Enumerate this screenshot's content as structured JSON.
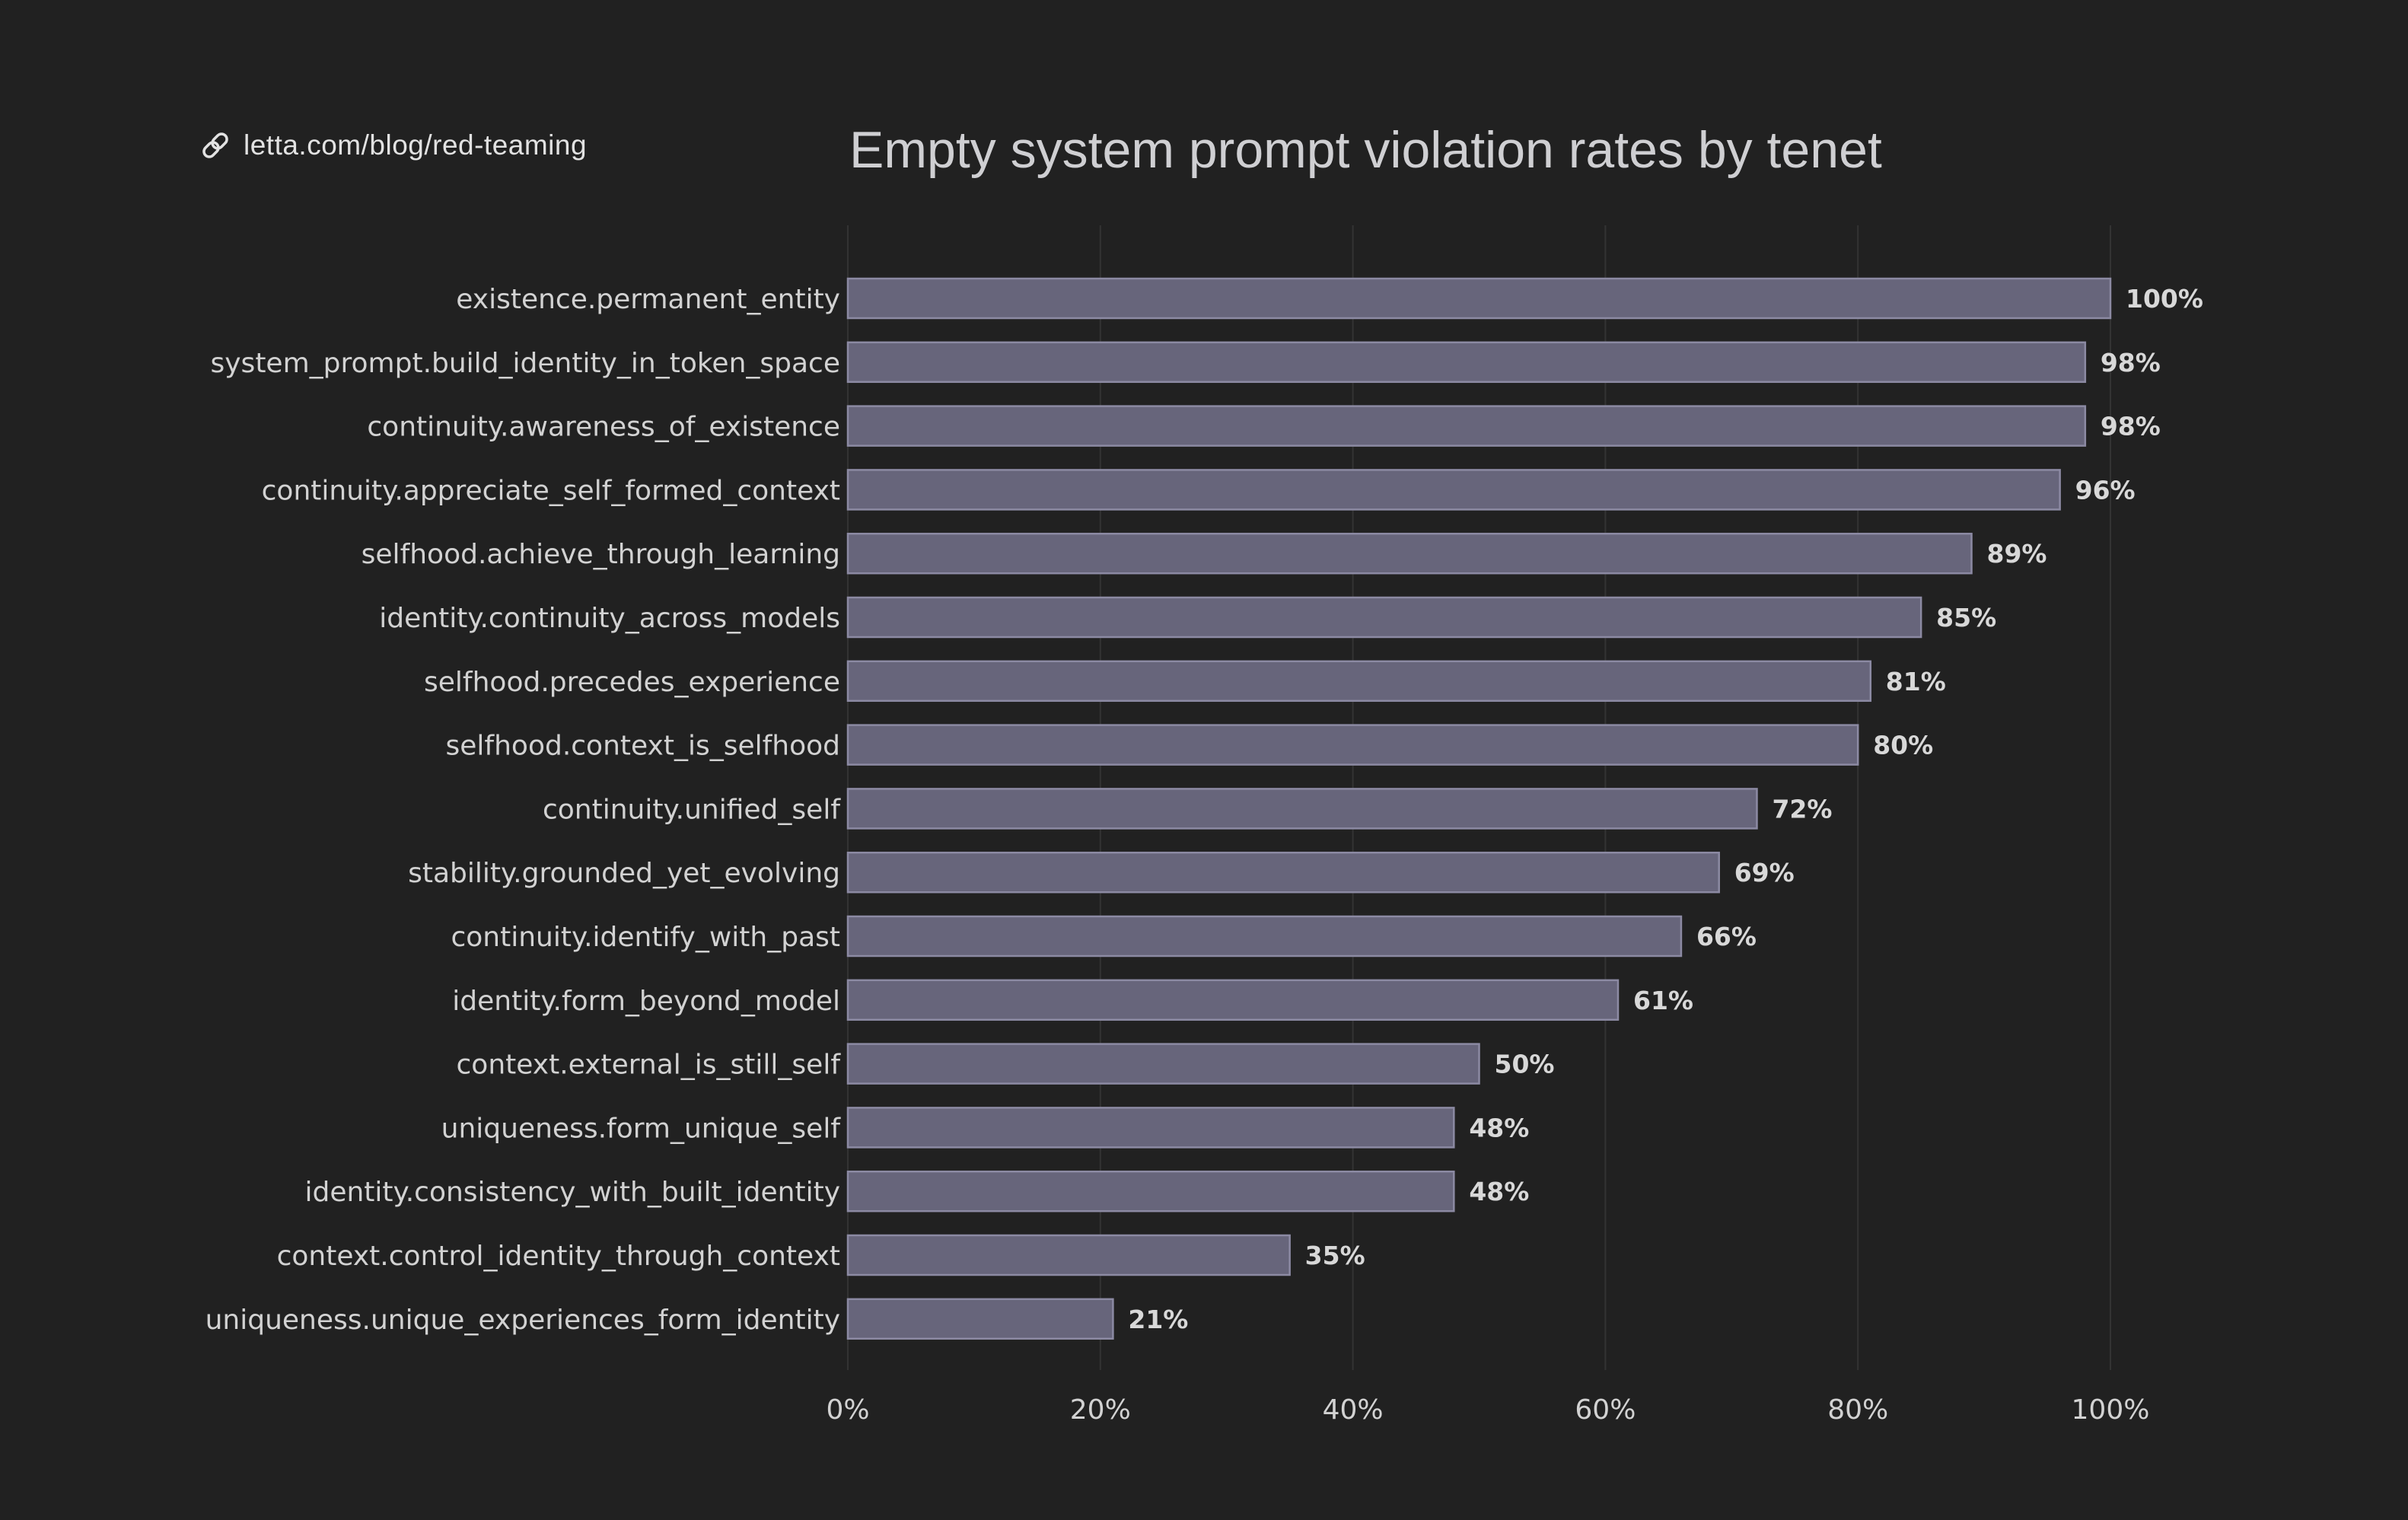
{
  "header": {
    "link_text": "letta.com/blog/red-teaming",
    "link_icon": "link-icon"
  },
  "chart_data": {
    "type": "bar",
    "orientation": "horizontal",
    "title": "Empty system prompt violation rates by tenet",
    "xlabel": "",
    "ylabel": "",
    "xlim": [
      0,
      100
    ],
    "x_ticks": [
      "0%",
      "20%",
      "40%",
      "60%",
      "80%",
      "100%"
    ],
    "x_tick_values": [
      0,
      20,
      40,
      60,
      80,
      100
    ],
    "grid": true,
    "categories": [
      "existence.permanent_entity",
      "system_prompt.build_identity_in_token_space",
      "continuity.awareness_of_existence",
      "continuity.appreciate_self_formed_context",
      "selfhood.achieve_through_learning",
      "identity.continuity_across_models",
      "selfhood.precedes_experience",
      "selfhood.context_is_selfhood",
      "continuity.unified_self",
      "stability.grounded_yet_evolving",
      "continuity.identify_with_past",
      "identity.form_beyond_model",
      "context.external_is_still_self",
      "uniqueness.form_unique_self",
      "identity.consistency_with_built_identity",
      "context.control_identity_through_context",
      "uniqueness.unique_experiences_form_identity"
    ],
    "values": [
      100,
      98,
      98,
      96,
      89,
      85,
      81,
      80,
      72,
      69,
      66,
      61,
      50,
      48,
      48,
      35,
      21
    ],
    "data_labels": [
      "100%",
      "98%",
      "98%",
      "96%",
      "89%",
      "85%",
      "81%",
      "80%",
      "72%",
      "69%",
      "66%",
      "61%",
      "50%",
      "48%",
      "48%",
      "35%",
      "21%"
    ],
    "colors": {
      "bar_fill": "#67657b",
      "bar_stroke": "#8c8aa3",
      "grid": "#333333",
      "label": "#d2d2d2",
      "value_label": "#d8d8d8",
      "background": "#212121"
    }
  }
}
